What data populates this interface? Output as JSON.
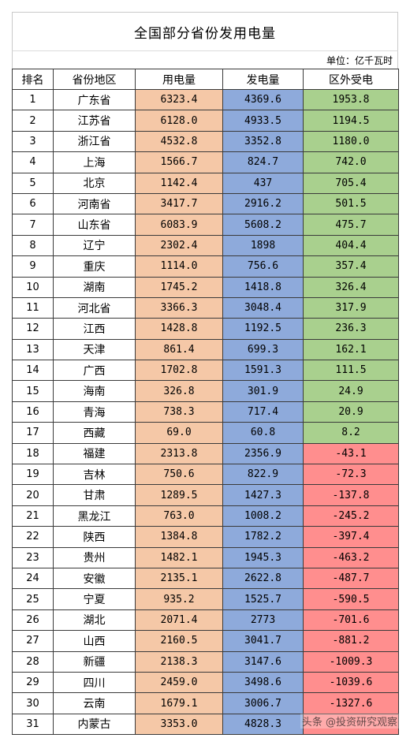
{
  "title": "全国部分省份发用电量",
  "unit": "单位：亿千瓦时",
  "headers": [
    "排名",
    "省份地区",
    "用电量",
    "发电量",
    "区外受电"
  ],
  "rows": [
    {
      "rank": "1",
      "province": "广东省",
      "use": "6323.4",
      "gen": "4369.6",
      "ext": "1953.8",
      "sign": "pos"
    },
    {
      "rank": "2",
      "province": "江苏省",
      "use": "6128.0",
      "gen": "4933.5",
      "ext": "1194.5",
      "sign": "pos"
    },
    {
      "rank": "3",
      "province": "浙江省",
      "use": "4532.8",
      "gen": "3352.8",
      "ext": "1180.0",
      "sign": "pos"
    },
    {
      "rank": "4",
      "province": "上海",
      "use": "1566.7",
      "gen": "824.7",
      "ext": "742.0",
      "sign": "pos"
    },
    {
      "rank": "5",
      "province": "北京",
      "use": "1142.4",
      "gen": "437",
      "ext": "705.4",
      "sign": "pos"
    },
    {
      "rank": "6",
      "province": "河南省",
      "use": "3417.7",
      "gen": "2916.2",
      "ext": "501.5",
      "sign": "pos"
    },
    {
      "rank": "7",
      "province": "山东省",
      "use": "6083.9",
      "gen": "5608.2",
      "ext": "475.7",
      "sign": "pos"
    },
    {
      "rank": "8",
      "province": "辽宁",
      "use": "2302.4",
      "gen": "1898",
      "ext": "404.4",
      "sign": "pos"
    },
    {
      "rank": "9",
      "province": "重庆",
      "use": "1114.0",
      "gen": "756.6",
      "ext": "357.4",
      "sign": "pos"
    },
    {
      "rank": "10",
      "province": "湖南",
      "use": "1745.2",
      "gen": "1418.8",
      "ext": "326.4",
      "sign": "pos"
    },
    {
      "rank": "11",
      "province": "河北省",
      "use": "3366.3",
      "gen": "3048.4",
      "ext": "317.9",
      "sign": "pos"
    },
    {
      "rank": "12",
      "province": "江西",
      "use": "1428.8",
      "gen": "1192.5",
      "ext": "236.3",
      "sign": "pos"
    },
    {
      "rank": "13",
      "province": "天津",
      "use": "861.4",
      "gen": "699.3",
      "ext": "162.1",
      "sign": "pos"
    },
    {
      "rank": "14",
      "province": "广西",
      "use": "1702.8",
      "gen": "1591.3",
      "ext": "111.5",
      "sign": "pos"
    },
    {
      "rank": "15",
      "province": "海南",
      "use": "326.8",
      "gen": "301.9",
      "ext": "24.9",
      "sign": "pos"
    },
    {
      "rank": "16",
      "province": "青海",
      "use": "738.3",
      "gen": "717.4",
      "ext": "20.9",
      "sign": "pos"
    },
    {
      "rank": "17",
      "province": "西藏",
      "use": "69.0",
      "gen": "60.8",
      "ext": "8.2",
      "sign": "pos"
    },
    {
      "rank": "18",
      "province": "福建",
      "use": "2313.8",
      "gen": "2356.9",
      "ext": "-43.1",
      "sign": "neg"
    },
    {
      "rank": "19",
      "province": "吉林",
      "use": "750.6",
      "gen": "822.9",
      "ext": "-72.3",
      "sign": "neg"
    },
    {
      "rank": "20",
      "province": "甘肃",
      "use": "1289.5",
      "gen": "1427.3",
      "ext": "-137.8",
      "sign": "neg"
    },
    {
      "rank": "21",
      "province": "黑龙江",
      "use": "763.0",
      "gen": "1008.2",
      "ext": "-245.2",
      "sign": "neg"
    },
    {
      "rank": "22",
      "province": "陕西",
      "use": "1384.8",
      "gen": "1782.2",
      "ext": "-397.4",
      "sign": "neg"
    },
    {
      "rank": "23",
      "province": "贵州",
      "use": "1482.1",
      "gen": "1945.3",
      "ext": "-463.2",
      "sign": "neg"
    },
    {
      "rank": "24",
      "province": "安徽",
      "use": "2135.1",
      "gen": "2622.8",
      "ext": "-487.7",
      "sign": "neg"
    },
    {
      "rank": "25",
      "province": "宁夏",
      "use": "935.2",
      "gen": "1525.7",
      "ext": "-590.5",
      "sign": "neg"
    },
    {
      "rank": "26",
      "province": "湖北",
      "use": "2071.4",
      "gen": "2773",
      "ext": "-701.6",
      "sign": "neg"
    },
    {
      "rank": "27",
      "province": "山西",
      "use": "2160.5",
      "gen": "3041.7",
      "ext": "-881.2",
      "sign": "neg"
    },
    {
      "rank": "28",
      "province": "新疆",
      "use": "2138.3",
      "gen": "3147.6",
      "ext": "-1009.3",
      "sign": "neg"
    },
    {
      "rank": "29",
      "province": "四川",
      "use": "2459.0",
      "gen": "3498.6",
      "ext": "-1039.6",
      "sign": "neg"
    },
    {
      "rank": "30",
      "province": "云南",
      "use": "1679.1",
      "gen": "3006.7",
      "ext": "-1327.6",
      "sign": "neg"
    },
    {
      "rank": "31",
      "province": "内蒙古",
      "use": "3353.0",
      "gen": "4828.3",
      "ext": "",
      "sign": "neg"
    }
  ],
  "watermark": "头条 @投资研究观察"
}
